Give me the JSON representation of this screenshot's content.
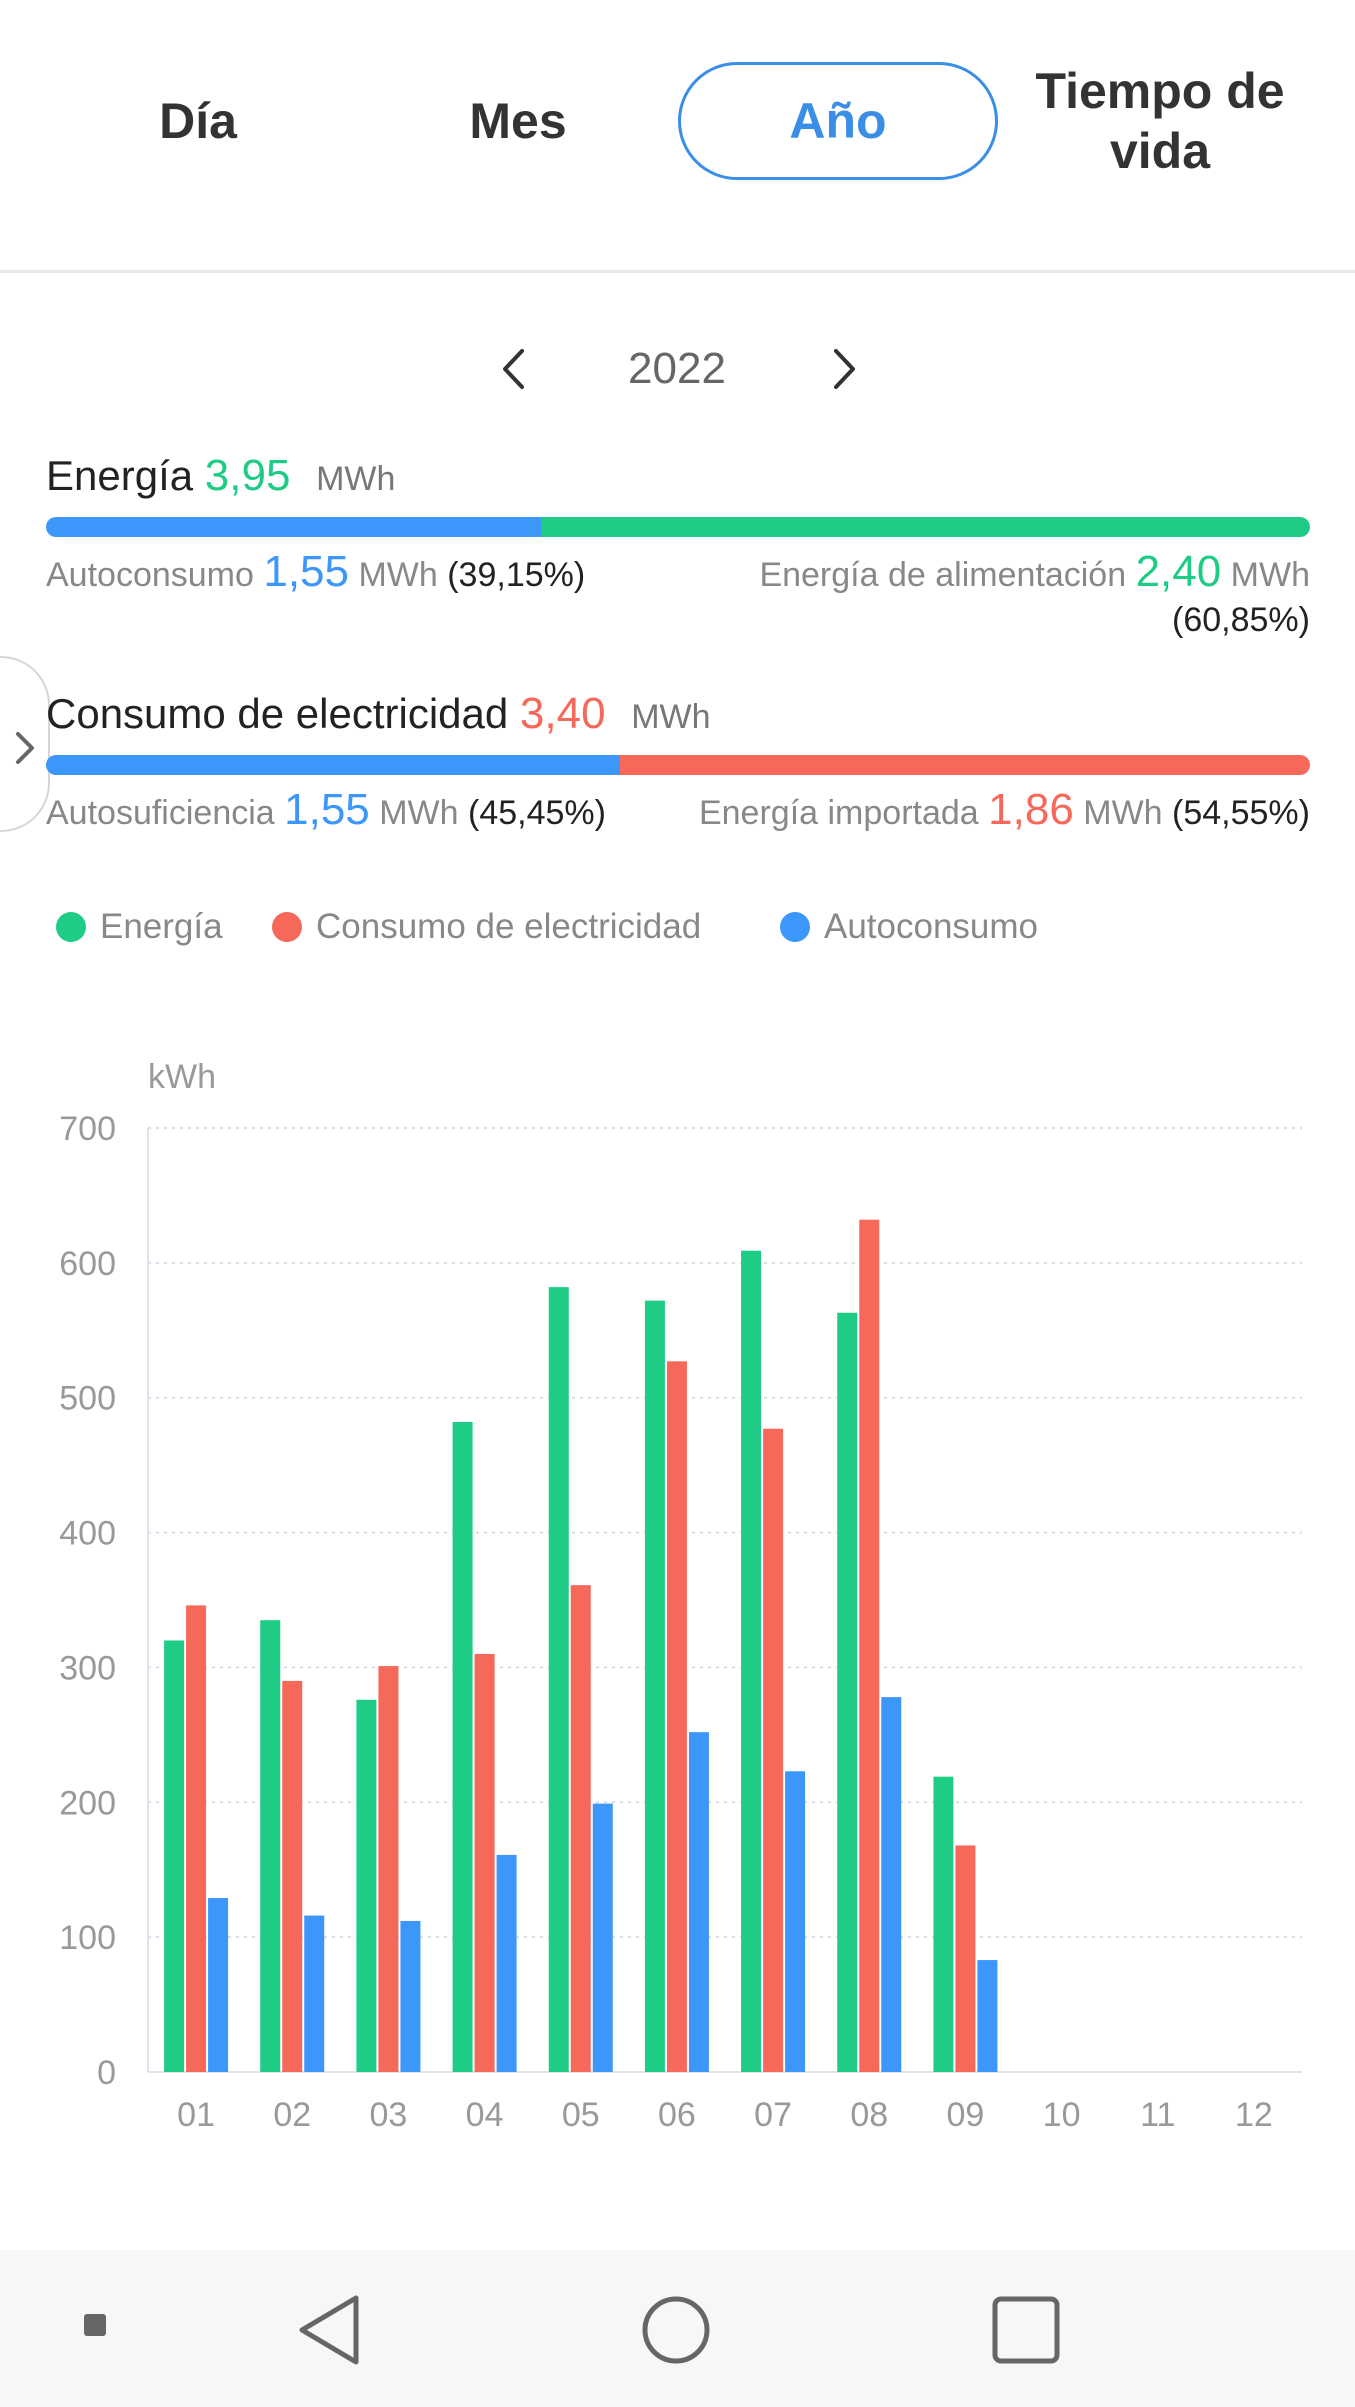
{
  "tabs": [
    {
      "label": "Día",
      "active": false
    },
    {
      "label": "Mes",
      "active": false
    },
    {
      "label": "Año",
      "active": true
    },
    {
      "label": "Tiempo de vida",
      "active": false
    }
  ],
  "year_nav": {
    "year": "2022",
    "prev_icon": "chevron-left-icon",
    "next_icon": "chevron-right-icon"
  },
  "energy": {
    "title": "Energía",
    "value": "3,95",
    "unit": "MWh",
    "autoconsumo": {
      "label": "Autoconsumo",
      "value": "1,55",
      "unit": "MWh",
      "pct": "(39,15%)"
    },
    "alimentacion": {
      "label": "Energía de alimentación",
      "value": "2,40",
      "unit": "MWh",
      "pct": "(60,85%)"
    },
    "split_fraction": 0.3915
  },
  "consumption": {
    "title": "Consumo de electricidad",
    "value": "3,40",
    "unit": "MWh",
    "autosuficiencia": {
      "label": "Autosuficiencia",
      "value": "1,55",
      "unit": "MWh",
      "pct": "(45,45%)"
    },
    "importada": {
      "label": "Energía importada",
      "value": "1,86",
      "unit": "MWh",
      "pct": "(54,55%)"
    },
    "split_fraction": 0.4545
  },
  "colors": {
    "green": "#1fcc86",
    "red": "#f6685a",
    "blue": "#3d96fa",
    "tab_active": "#3a8ee6"
  },
  "chart_data": {
    "type": "bar",
    "ylabel": "kWh",
    "ylim": [
      0,
      700
    ],
    "yticks": [
      "0",
      "100",
      "200",
      "300",
      "400",
      "500",
      "600",
      "700"
    ],
    "categories": [
      "01",
      "02",
      "03",
      "04",
      "05",
      "06",
      "07",
      "08",
      "09",
      "10",
      "11",
      "12"
    ],
    "series": [
      {
        "name": "Energía",
        "color": "#1fcc86",
        "values": [
          320,
          335,
          276,
          482,
          582,
          572,
          609,
          563,
          219,
          null,
          null,
          null
        ]
      },
      {
        "name": "Consumo de electricidad",
        "color": "#f6685a",
        "values": [
          346,
          290,
          301,
          310,
          361,
          527,
          477,
          632,
          168,
          null,
          null,
          null
        ]
      },
      {
        "name": "Autoconsumo",
        "color": "#3d96fa",
        "values": [
          129,
          116,
          112,
          161,
          199,
          252,
          223,
          278,
          83,
          null,
          null,
          null
        ]
      }
    ],
    "grid": true,
    "legend": "top-left"
  },
  "navbar": {
    "icons": [
      "recent-dot-icon",
      "back-icon",
      "home-icon",
      "overview-icon"
    ]
  }
}
